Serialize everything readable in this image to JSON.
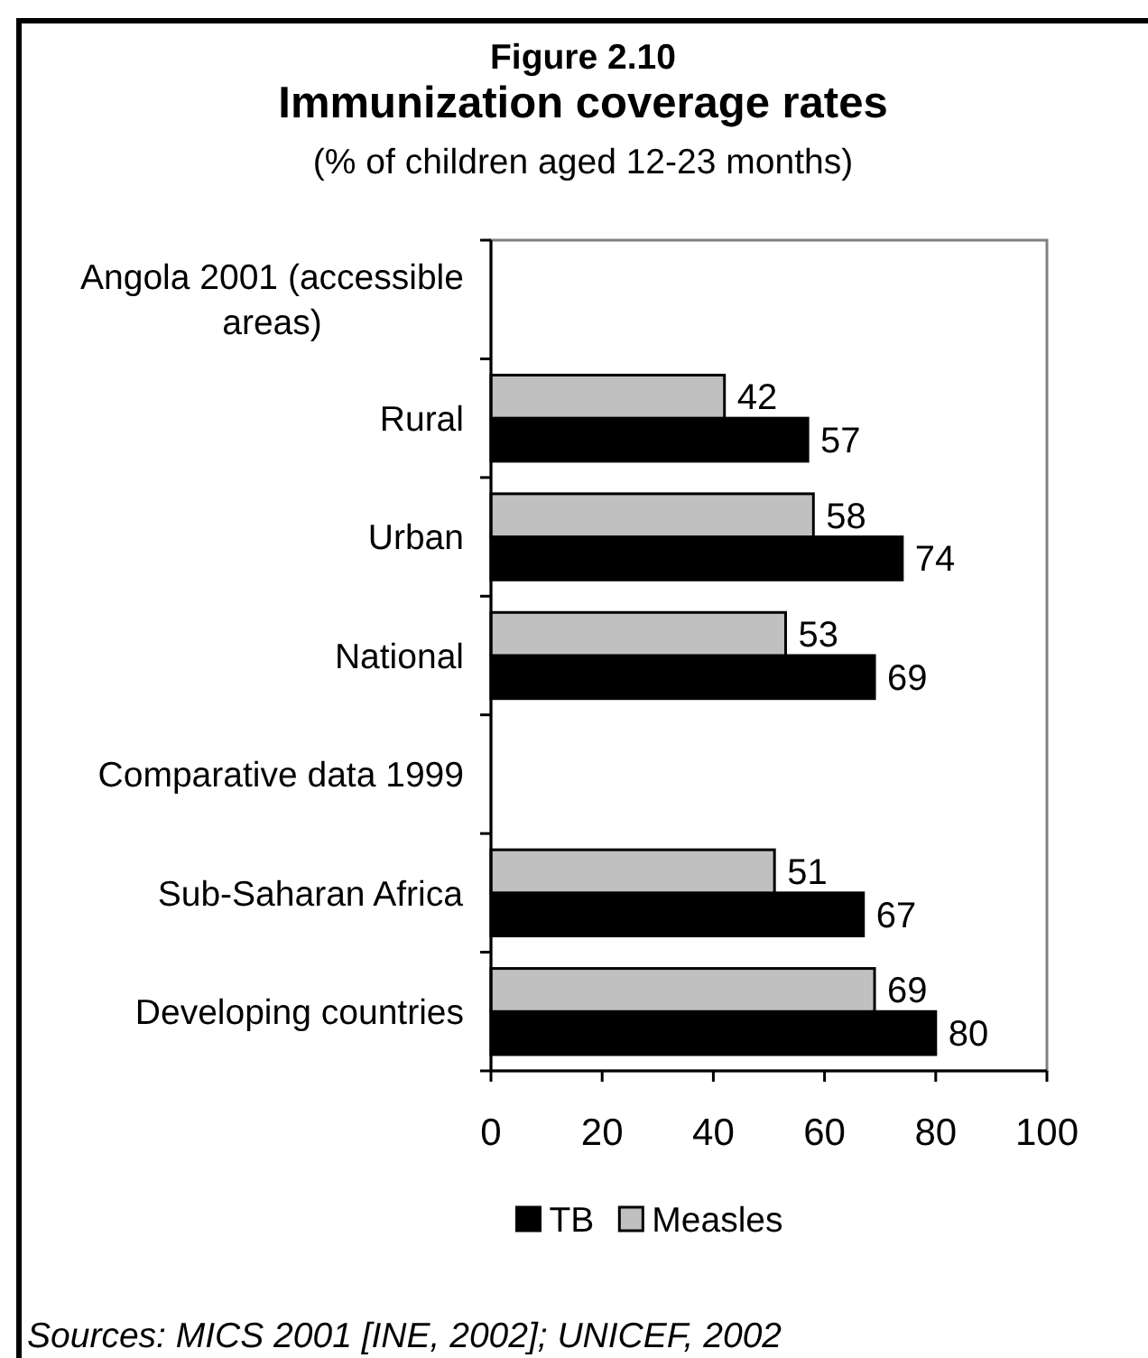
{
  "chart_data": {
    "type": "bar",
    "orientation": "horizontal",
    "title": "Figure 2.10\nImmunization coverage rates",
    "subtitle": "(% of children aged 12-23 months)",
    "categories": [
      "Angola 2001 (accessible areas)",
      "Rural",
      "Urban",
      "National",
      "Comparative data 1999",
      "Sub-Saharan Africa",
      "Developing countries"
    ],
    "series": [
      {
        "name": "TB",
        "color": "#000000",
        "values": [
          null,
          57,
          74,
          69,
          null,
          67,
          80
        ]
      },
      {
        "name": "Measles",
        "color": "#c0c0c0",
        "values": [
          null,
          42,
          58,
          53,
          null,
          51,
          69
        ]
      }
    ],
    "xlim": [
      0,
      100
    ],
    "xticks": [
      0,
      20,
      40,
      60,
      80,
      100
    ],
    "data_labels": true,
    "legend": "bottom",
    "annotations": [
      "Sources: MICS 2001 [INE, 2002]; UNICEF, 2002"
    ]
  }
}
